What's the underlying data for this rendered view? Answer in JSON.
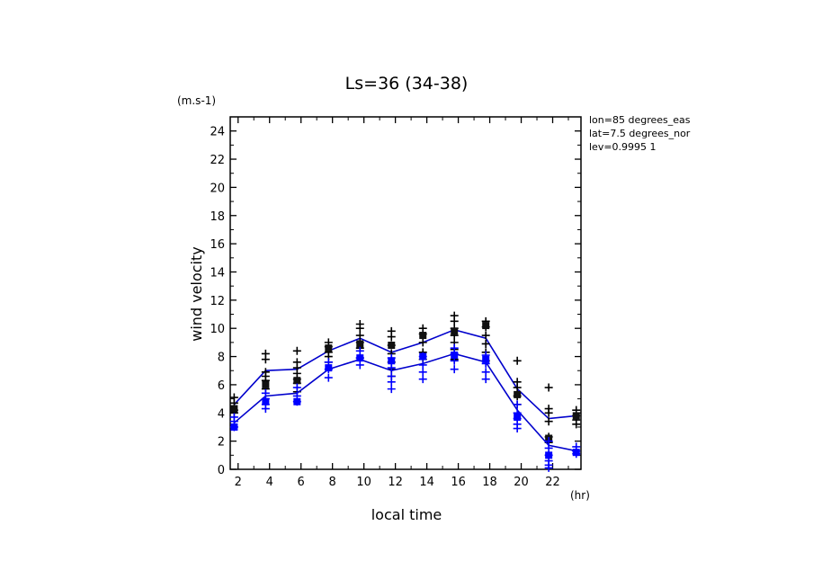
{
  "chart_data": {
    "type": "line",
    "title": "Ls=36 (34-38)",
    "xlabel": "local time",
    "ylabel": "wind velocity",
    "x_unit": "(hr)",
    "y_unit": "(m.s-1)",
    "annotations": [
      "lon=85 degrees_eas",
      "lat=7.5 degrees_nor",
      "lev=0.9995 1"
    ],
    "xlim": [
      1.5,
      23.8
    ],
    "ylim": [
      0,
      25
    ],
    "x_ticks": [
      2,
      4,
      6,
      8,
      10,
      12,
      14,
      16,
      18,
      20,
      22
    ],
    "y_ticks": [
      0,
      2,
      4,
      6,
      8,
      10,
      12,
      14,
      16,
      18,
      20,
      22,
      24
    ],
    "grid": false,
    "x": [
      1.75,
      3.75,
      5.75,
      7.75,
      9.75,
      11.75,
      13.75,
      15.75,
      17.75,
      19.75,
      21.75,
      23.5
    ],
    "series": [
      {
        "color": "#0000cc",
        "line_values": [
          4.6,
          7.0,
          7.1,
          8.4,
          9.3,
          8.3,
          9.0,
          9.9,
          9.3,
          5.7,
          3.6,
          3.8
        ],
        "mean_values": [
          4.3,
          6.0,
          6.3,
          8.6,
          8.9,
          8.8,
          9.5,
          9.8,
          10.2,
          5.3,
          2.2,
          3.8
        ],
        "scatter": [
          [
            5.1,
            4.7,
            4.2,
            4.0
          ],
          [
            8.2,
            7.8,
            6.9,
            6.6,
            6.3,
            5.7
          ],
          [
            8.4,
            7.6,
            7.2,
            6.8,
            6.4,
            6.1,
            5.5
          ],
          [
            9.0,
            8.7,
            8.3,
            8.0,
            7.6
          ],
          [
            10.3,
            10.0,
            9.5,
            9.0,
            8.6,
            7.9
          ],
          [
            9.8,
            9.4,
            8.8,
            8.2,
            7.6,
            7.1,
            6.6
          ],
          [
            10.0,
            9.6,
            9.0,
            8.3,
            7.8
          ],
          [
            10.9,
            10.5,
            10.0,
            9.5,
            9.0,
            8.5,
            7.8
          ],
          [
            10.5,
            10.1,
            9.5,
            8.9,
            8.3,
            7.7
          ],
          [
            7.7,
            6.2,
            5.8,
            5.2,
            4.6
          ],
          [
            5.8,
            4.3,
            4.0,
            3.4,
            2.3,
            1.9
          ],
          [
            4.2,
            3.8,
            3.5,
            3.2
          ]
        ]
      },
      {
        "color": "#0000cc",
        "line_values": [
          3.3,
          5.2,
          5.4,
          7.1,
          7.8,
          7.0,
          7.5,
          8.2,
          7.6,
          4.2,
          1.7,
          1.3
        ],
        "mean_values": [
          3.0,
          4.8,
          4.8,
          7.2,
          7.9,
          7.7,
          8.0,
          8.1,
          7.8,
          3.7,
          1.0,
          1.2
        ],
        "scatter": [
          [
            3.7,
            3.4,
            3.0
          ],
          [
            5.4,
            5.0,
            4.6,
            4.3
          ],
          [
            5.8,
            5.2,
            4.8
          ],
          [
            7.6,
            7.1,
            6.5
          ],
          [
            8.4,
            7.9,
            7.4
          ],
          [
            7.9,
            7.2,
            6.6,
            6.2,
            5.7
          ],
          [
            8.0,
            7.4,
            6.9,
            6.4
          ],
          [
            8.6,
            8.2,
            7.7,
            7.1
          ],
          [
            8.1,
            7.5,
            6.9,
            6.4
          ],
          [
            4.6,
            4.0,
            3.6,
            3.2,
            2.9
          ],
          [
            2.0,
            1.5,
            1.0,
            0.6,
            0.3,
            0.1
          ],
          [
            1.6,
            1.3,
            1.1
          ]
        ]
      }
    ]
  }
}
